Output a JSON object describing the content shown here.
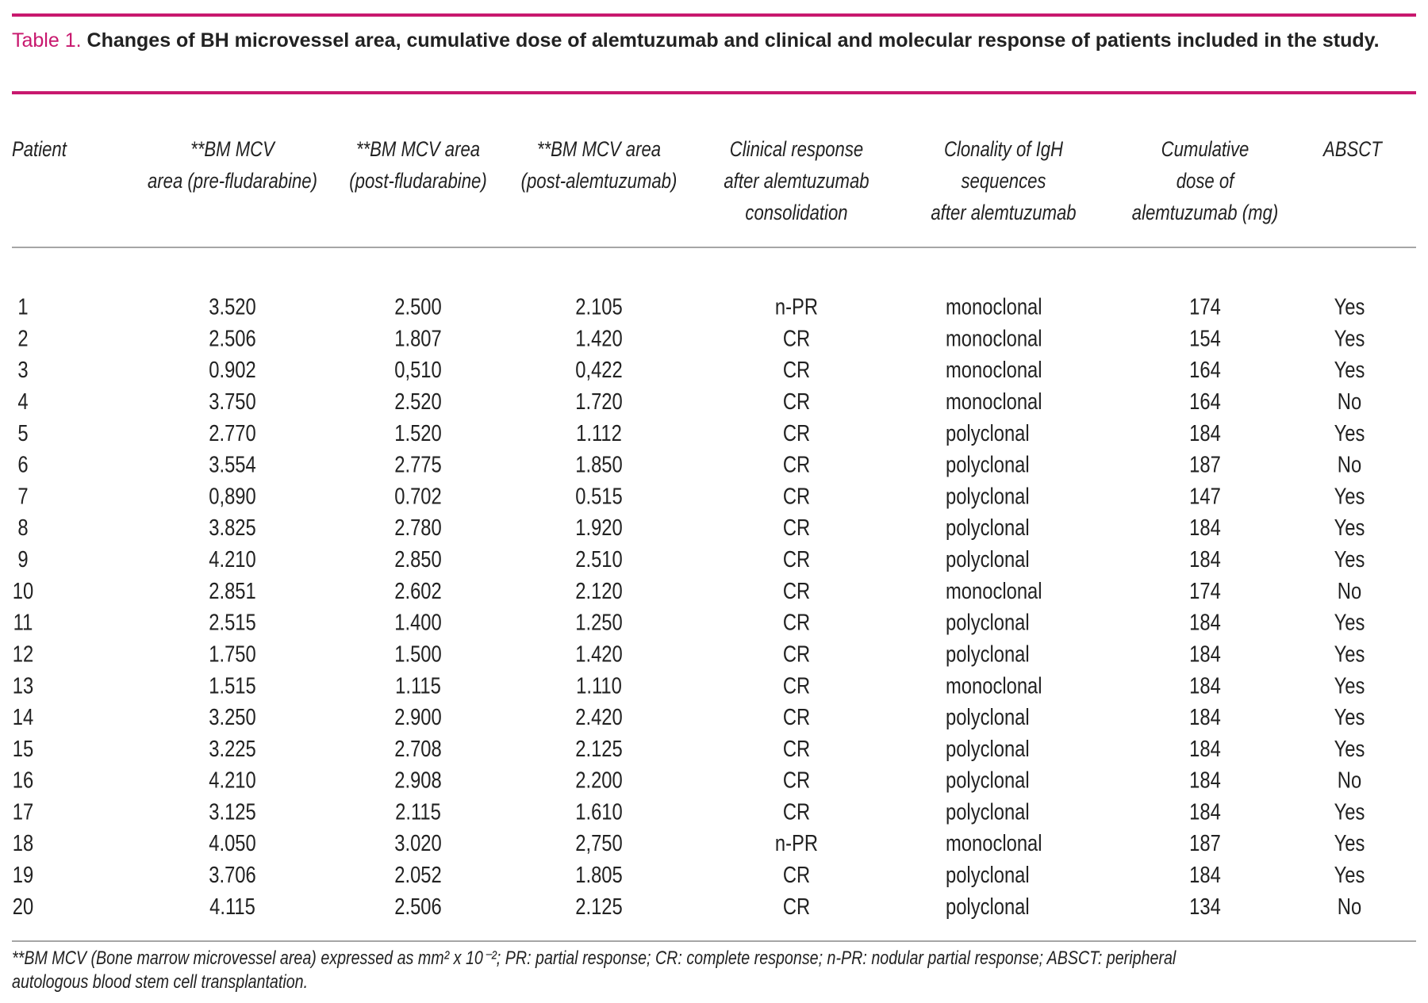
{
  "caption": {
    "label": "Table 1.",
    "text": "Changes of BH microvessel area, cumulative dose of alemtuzumab and clinical and molecular response of patients included in the study."
  },
  "table": {
    "headers": [
      [
        "Patient"
      ],
      [
        "**BM MCV",
        "area (pre-fludarabine)"
      ],
      [
        "**BM MCV area",
        "(post-fludarabine)"
      ],
      [
        "**BM MCV area",
        "(post-alemtuzumab)"
      ],
      [
        "Clinical response",
        "after alemtuzumab",
        "consolidation"
      ],
      [
        "Clonality of IgH",
        "sequences",
        "after alemtuzumab"
      ],
      [
        "Cumulative",
        "dose of",
        "alemtuzumab (mg)"
      ],
      [
        "ABSCT"
      ]
    ],
    "rows": [
      [
        "1",
        "3.520",
        "2.500",
        "2.105",
        "n-PR",
        "monoclonal",
        "174",
        "Yes"
      ],
      [
        "2",
        "2.506",
        "1.807",
        "1.420",
        "CR",
        "monoclonal",
        "154",
        "Yes"
      ],
      [
        "3",
        "0.902",
        "0,510",
        "0,422",
        "CR",
        "monoclonal",
        "164",
        "Yes"
      ],
      [
        "4",
        "3.750",
        "2.520",
        "1.720",
        "CR",
        "monoclonal",
        "164",
        "No"
      ],
      [
        "5",
        "2.770",
        "1.520",
        "1.112",
        "CR",
        "polyclonal",
        "184",
        "Yes"
      ],
      [
        "6",
        "3.554",
        "2.775",
        "1.850",
        "CR",
        "polyclonal",
        "187",
        "No"
      ],
      [
        "7",
        "0,890",
        "0.702",
        "0.515",
        "CR",
        "polyclonal",
        "147",
        "Yes"
      ],
      [
        "8",
        "3.825",
        "2.780",
        "1.920",
        "CR",
        "polyclonal",
        "184",
        "Yes"
      ],
      [
        "9",
        "4.210",
        "2.850",
        "2.510",
        "CR",
        "polyclonal",
        "184",
        "Yes"
      ],
      [
        "10",
        "2.851",
        "2.602",
        "2.120",
        "CR",
        "monoclonal",
        "174",
        "No"
      ],
      [
        "11",
        "2.515",
        "1.400",
        "1.250",
        "CR",
        "polyclonal",
        "184",
        "Yes"
      ],
      [
        "12",
        "1.750",
        "1.500",
        "1.420",
        "CR",
        "polyclonal",
        "184",
        "Yes"
      ],
      [
        "13",
        "1.515",
        "1.115",
        "1.110",
        "CR",
        "monoclonal",
        "184",
        "Yes"
      ],
      [
        "14",
        "3.250",
        "2.900",
        "2.420",
        "CR",
        "polyclonal",
        "184",
        "Yes"
      ],
      [
        "15",
        "3.225",
        "2.708",
        "2.125",
        "CR",
        "polyclonal",
        "184",
        "Yes"
      ],
      [
        "16",
        "4.210",
        "2.908",
        "2.200",
        "CR",
        "polyclonal",
        "184",
        "No"
      ],
      [
        "17",
        "3.125",
        "2.115",
        "1.610",
        "CR",
        "polyclonal",
        "184",
        "Yes"
      ],
      [
        "18",
        "4.050",
        "3.020",
        "2,750",
        "n-PR",
        "monoclonal",
        "187",
        "Yes"
      ],
      [
        "19",
        "3.706",
        "2.052",
        "1.805",
        "CR",
        "polyclonal",
        "184",
        "Yes"
      ],
      [
        "20",
        "4.115",
        "2.506",
        "2.125",
        "CR",
        "polyclonal",
        "134",
        "No"
      ]
    ]
  },
  "footnote": "**BM MCV (Bone marrow microvessel area) expressed as mm² x 10⁻²; PR: partial response; CR: complete response; n-PR: nodular partial response; ABSCT: peripheral autologous blood stem cell transplantation."
}
